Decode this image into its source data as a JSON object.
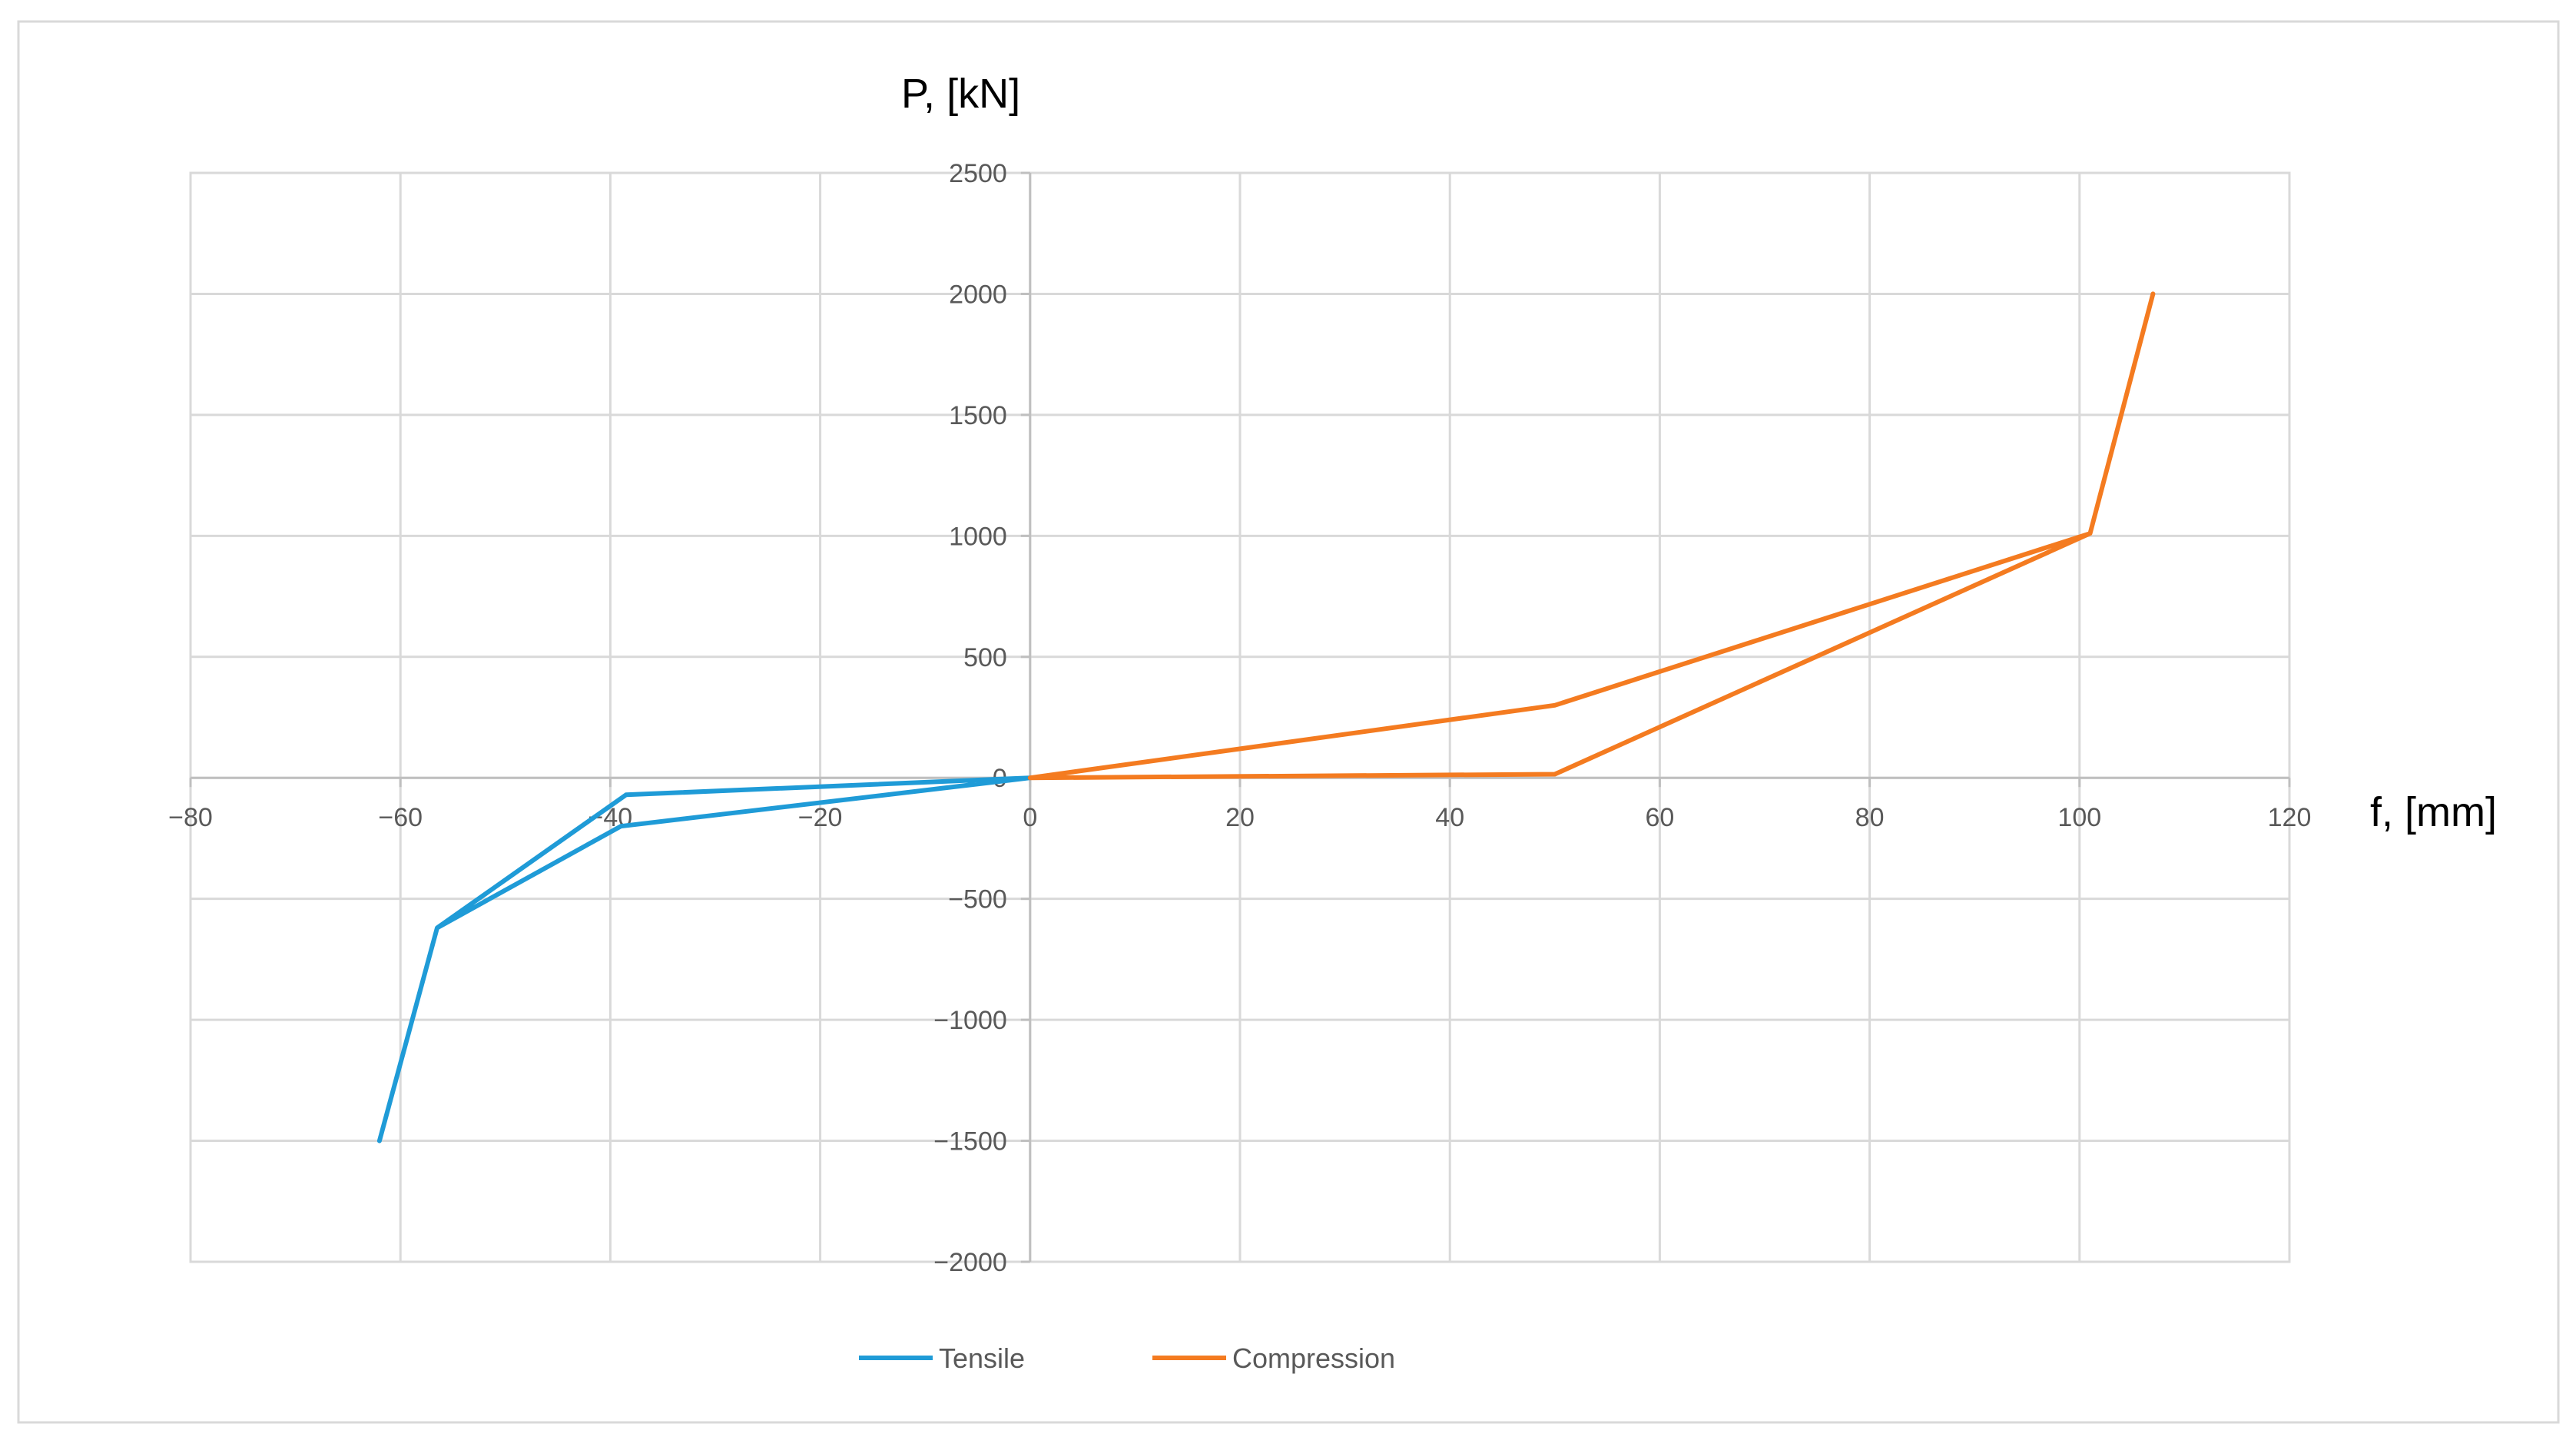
{
  "chart_data": {
    "type": "line",
    "title": "",
    "xlabel": "f, [mm]",
    "ylabel": "P, [kN]",
    "xlim": [
      -80,
      120
    ],
    "ylim": [
      -2000,
      2500
    ],
    "x_ticks": [
      -80,
      -60,
      -40,
      -20,
      0,
      20,
      40,
      60,
      80,
      100,
      120
    ],
    "y_ticks": [
      -2000,
      -1500,
      -1000,
      -500,
      0,
      500,
      1000,
      1500,
      2000,
      2500
    ],
    "grid": true,
    "legend_position": "bottom",
    "series": [
      {
        "name": "Tensile",
        "color": "#1f9bd7",
        "x": [
          0,
          -38.5,
          -56.5,
          -62
        ],
        "y": [
          0,
          -70,
          -620,
          -1500
        ],
        "x_back": [
          -56.5,
          -39,
          0
        ],
        "y_back": [
          -620,
          -200,
          0
        ]
      },
      {
        "name": "Compression",
        "color": "#f47b20",
        "x": [
          0,
          50,
          101,
          107
        ],
        "y": [
          0,
          300,
          1010,
          2000
        ],
        "x_back": [
          101,
          50,
          0
        ],
        "y_back": [
          1010,
          15,
          0
        ]
      }
    ]
  }
}
